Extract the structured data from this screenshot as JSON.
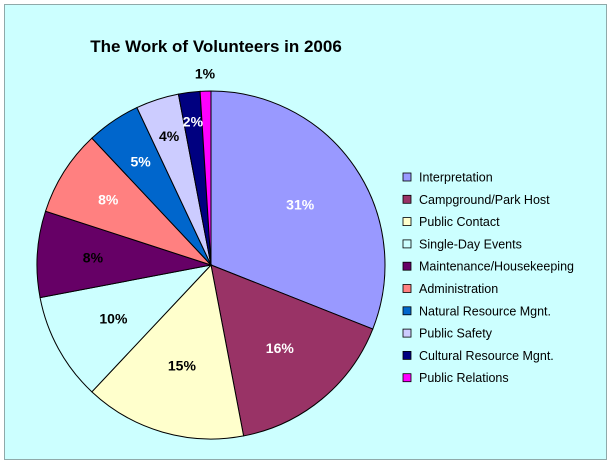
{
  "chart_data": {
    "type": "pie",
    "title": "The Work of Volunteers in 2006",
    "legend_position": "right",
    "slices": [
      {
        "name": "Interpretation",
        "value": 31,
        "label": "31%",
        "color": "#9999ff",
        "label_color": "#ffffff"
      },
      {
        "name": "Campground/Park Host",
        "value": 16,
        "label": "16%",
        "color": "#993366",
        "label_color": "#ffffff"
      },
      {
        "name": "Public Contact",
        "value": 15,
        "label": "15%",
        "color": "#ffffcc",
        "label_color": "#000000"
      },
      {
        "name": "Single-Day Events",
        "value": 10,
        "label": "10%",
        "color": "#ccffff",
        "label_color": "#000000"
      },
      {
        "name": "Maintenance/Housekeeping",
        "value": 8,
        "label": "8%",
        "color": "#660066",
        "label_color": "#000000"
      },
      {
        "name": "Administration",
        "value": 8,
        "label": "8%",
        "color": "#ff8080",
        "label_color": "#ffffff"
      },
      {
        "name": "Natural Resource Mgnt.",
        "value": 5,
        "label": "5%",
        "color": "#0066cc",
        "label_color": "#ffffff"
      },
      {
        "name": "Public Safety",
        "value": 4,
        "label": "4%",
        "color": "#ccccff",
        "label_color": "#000000"
      },
      {
        "name": "Cultural Resource Mgnt.",
        "value": 2,
        "label": "2%",
        "color": "#000080",
        "label_color": "#ffffff"
      },
      {
        "name": "Public Relations",
        "value": 1,
        "label": "1%",
        "color": "#ff00ff",
        "label_color": "#000000"
      }
    ]
  }
}
